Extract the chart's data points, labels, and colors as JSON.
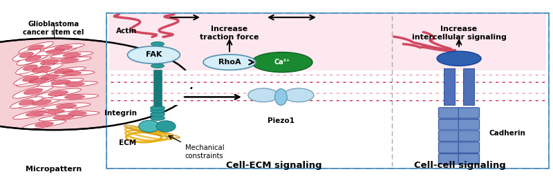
{
  "fig_width": 8.0,
  "fig_height": 2.65,
  "dpi": 100,
  "bg_color": "#ffffff",
  "cell_ecm_label": "Cell-ECM signaling",
  "cell_cell_label": "Cell-cell signaling",
  "micropattern_label": "Micropattern",
  "glioblastoma_label": "Glioblastoma\ncancer stem cel",
  "ecm_label": "ECM",
  "integrin_label": "Integrin",
  "mechanical_label": "Mechanical\nconstraints",
  "piezo1_label": "Piezo1",
  "cadherin_label": "Cadherin",
  "fak_label": "FAK",
  "rhoa_label": "RhoA",
  "ca2_label": "Ca²⁺",
  "actin_label": "Actin",
  "increase_traction_label": "Increase\ntraction force",
  "increase_intercellular_label": "Increase\nintercellular signaling",
  "teal_dark": "#1a7a7a",
  "teal_mid": "#2a9a9a",
  "teal_light": "#4ab8b8",
  "blue_dark": "#2a4a90",
  "blue_mid": "#4a6ab0",
  "blue_light": "#8aaad8",
  "green_dark": "#0a6020",
  "green_mid": "#1a8a30",
  "gold": "#e8a800",
  "gold_dark": "#c08800",
  "red_cell": "#cc2844",
  "pink_bg": "#fce8ee",
  "salmon": "#d04860",
  "box_border": "#5090c0",
  "mem_red": "#d03050",
  "mem_pink": "#f0a0b0"
}
